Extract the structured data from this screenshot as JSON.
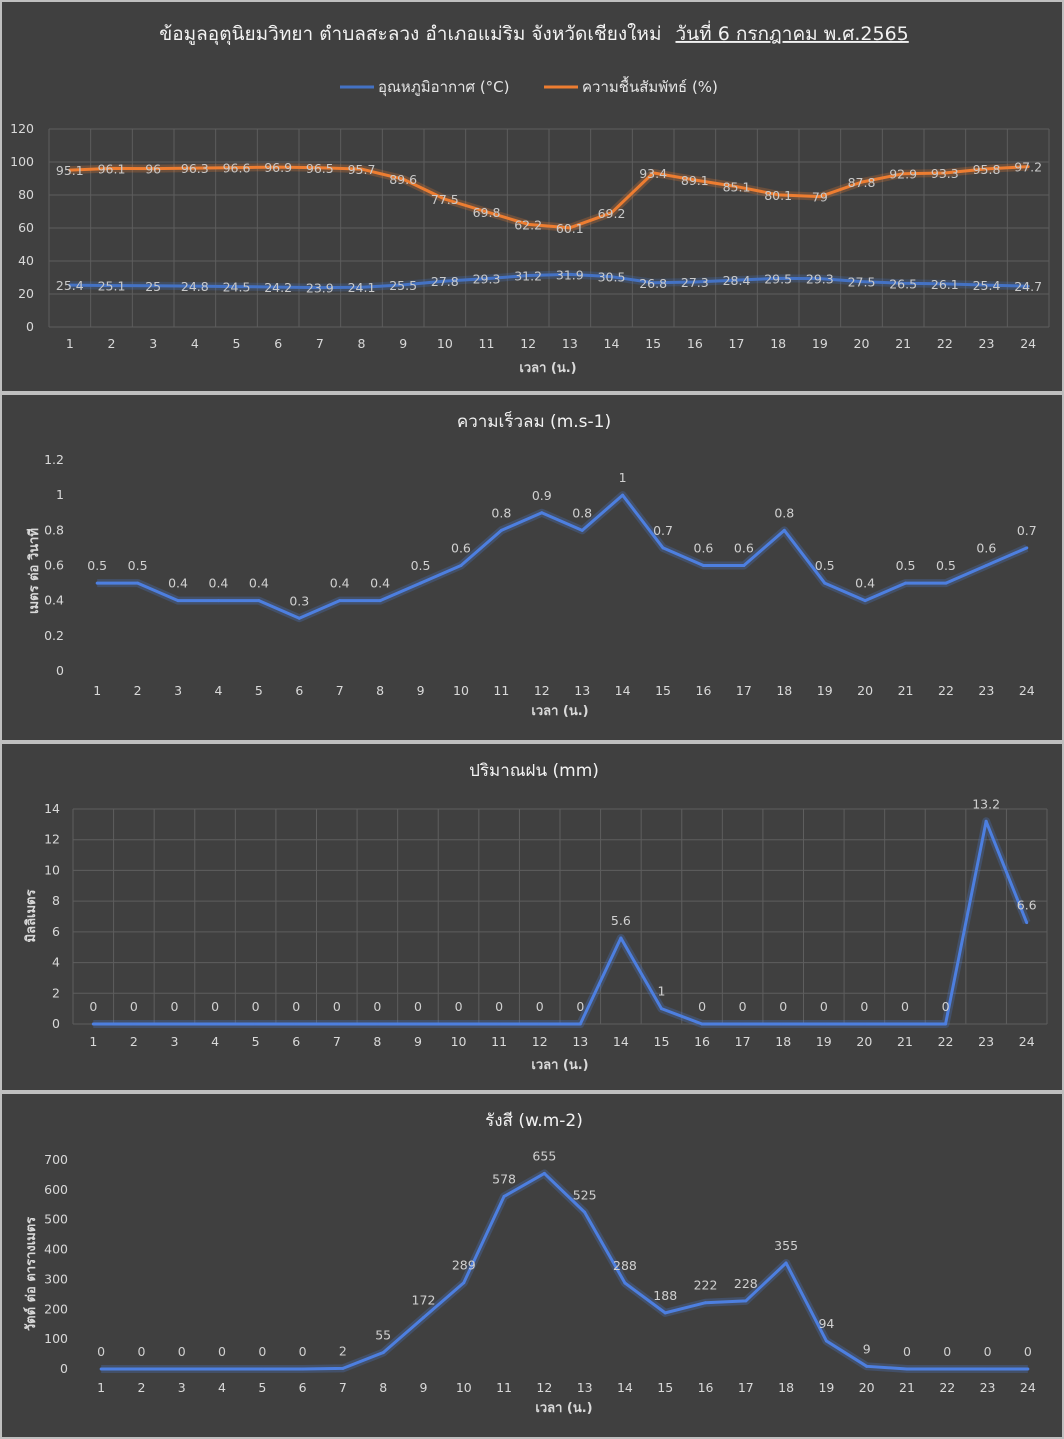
{
  "page_title": "ข้อมูลอุตุนิยมวิทยา ตำบลสะลวง อำเภอแม่ริม จังหวัดเชียงใหม่",
  "page_date": "วันที่ 6 กรกฎาคม พ.ศ.2565",
  "colors": {
    "temperature": "#4472c4",
    "humidity": "#ed7d31",
    "line": "#4d7fe0",
    "background": "#404040"
  },
  "chart_data": [
    {
      "id": "temp-humidity",
      "type": "line",
      "title": "",
      "xlabel": "เวลา (น.)",
      "ylabel": "",
      "ylim": [
        0,
        120
      ],
      "yticks": [
        0,
        20,
        40,
        60,
        80,
        100,
        120
      ],
      "grid": true,
      "legend": "top",
      "x": [
        1,
        2,
        3,
        4,
        5,
        6,
        7,
        8,
        9,
        10,
        11,
        12,
        13,
        14,
        15,
        16,
        17,
        18,
        19,
        20,
        21,
        22,
        23,
        24
      ],
      "series": [
        {
          "name": "อุณหภูมิอากาศ (°C)",
          "color": "#4472c4",
          "values": [
            25.4,
            25.1,
            25,
            24.8,
            24.5,
            24.2,
            23.9,
            24.1,
            25.5,
            27.8,
            29.3,
            31.2,
            31.9,
            30.5,
            26.8,
            27.3,
            28.4,
            29.5,
            29.3,
            27.5,
            26.5,
            26.1,
            25.4,
            24.7
          ]
        },
        {
          "name": "ความชื้นสัมพัทธ์ (%)",
          "color": "#ed7d31",
          "values": [
            95.1,
            96.1,
            96,
            96.3,
            96.6,
            96.9,
            96.5,
            95.7,
            89.6,
            77.5,
            69.8,
            62.2,
            60.1,
            69.2,
            93.4,
            89.1,
            85.1,
            80.1,
            79,
            87.8,
            92.9,
            93.3,
            95.8,
            97.2
          ]
        }
      ]
    },
    {
      "id": "wind-speed",
      "type": "line",
      "title": "ความเร็วลม (m.s-1)",
      "xlabel": "เวลา (น.)",
      "ylabel": "เมตร ต่อ วินาที",
      "ylim": [
        0,
        1.2
      ],
      "yticks": [
        0,
        0.2,
        0.4,
        0.6,
        0.8,
        1,
        1.2
      ],
      "grid": false,
      "x": [
        1,
        2,
        3,
        4,
        5,
        6,
        7,
        8,
        9,
        10,
        11,
        12,
        13,
        14,
        15,
        16,
        17,
        18,
        19,
        20,
        21,
        22,
        23,
        24
      ],
      "values": [
        0.5,
        0.5,
        0.4,
        0.4,
        0.4,
        0.3,
        0.4,
        0.4,
        0.5,
        0.6,
        0.8,
        0.9,
        0.8,
        1,
        0.7,
        0.6,
        0.6,
        0.8,
        0.5,
        0.4,
        0.5,
        0.5,
        0.6,
        0.7
      ]
    },
    {
      "id": "rainfall",
      "type": "line",
      "title": "ปริมาณฝน (mm)",
      "xlabel": "เวลา (น.)",
      "ylabel": "มิลลิเมตร",
      "ylim": [
        0,
        14
      ],
      "yticks": [
        0,
        2,
        4,
        6,
        8,
        10,
        12,
        14
      ],
      "grid": true,
      "x": [
        1,
        2,
        3,
        4,
        5,
        6,
        7,
        8,
        9,
        10,
        11,
        12,
        13,
        14,
        15,
        16,
        17,
        18,
        19,
        20,
        21,
        22,
        23,
        24
      ],
      "values": [
        0,
        0,
        0,
        0,
        0,
        0,
        0,
        0,
        0,
        0,
        0,
        0,
        0,
        5.6,
        1,
        0,
        0,
        0,
        0,
        0,
        0,
        0,
        13.2,
        6.6
      ]
    },
    {
      "id": "radiation",
      "type": "line",
      "title": "รังสี (w.m-2)",
      "xlabel": "เวลา (น.)",
      "ylabel": "วัตต์ ต่อ ตารางเมตร",
      "ylim": [
        0,
        700
      ],
      "yticks": [
        0,
        100,
        200,
        300,
        400,
        500,
        600,
        700
      ],
      "grid": false,
      "x": [
        1,
        2,
        3,
        4,
        5,
        6,
        7,
        8,
        9,
        10,
        11,
        12,
        13,
        14,
        15,
        16,
        17,
        18,
        19,
        20,
        21,
        22,
        23,
        24
      ],
      "values": [
        0,
        0,
        0,
        0,
        0,
        0,
        2,
        55,
        172,
        289,
        578,
        655,
        525,
        288,
        188,
        222,
        228,
        355,
        94,
        9,
        0,
        0,
        0,
        0
      ]
    }
  ]
}
